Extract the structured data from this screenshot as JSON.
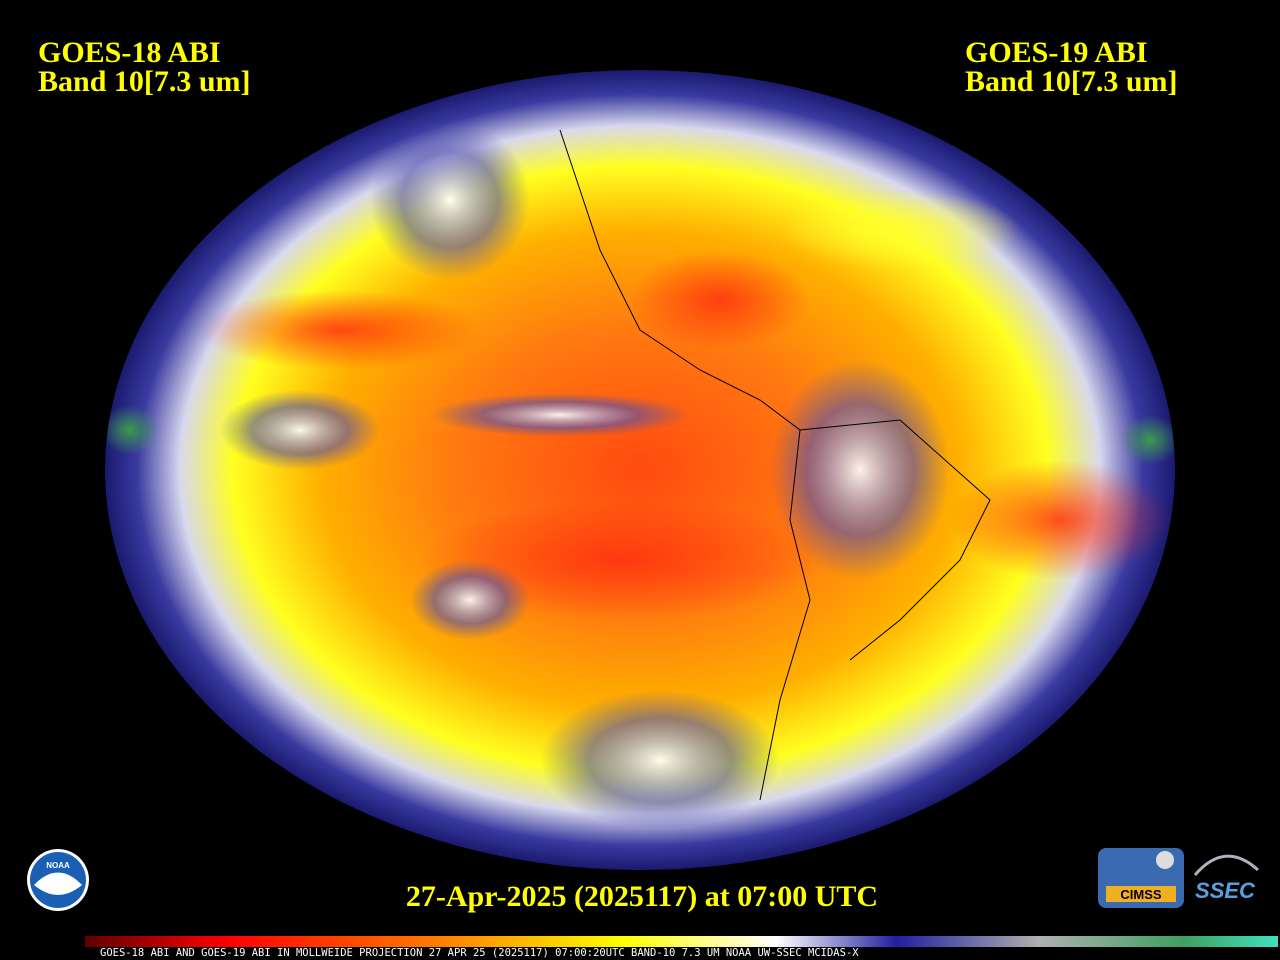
{
  "header": {
    "left": {
      "satellite": "GOES-18 ABI",
      "band": "Band 10[7.3 um]"
    },
    "right": {
      "satellite": "GOES-19 ABI",
      "band": "Band 10[7.3 um]"
    }
  },
  "timestamp": "27-Apr-2025 (2025117) at 07:00 UTC",
  "colorbar_caption": "GOES-18 ABI AND GOES-19 ABI IN MOLLWEIDE PROJECTION 27 APR 25 (2025117) 07:00:20UTC BAND-10 7.3 UM NOAA UW-SSEC MCIDAS-X",
  "logos": {
    "noaa": "NOAA",
    "cimss": "CIMSS",
    "ssec": "SSEC"
  }
}
